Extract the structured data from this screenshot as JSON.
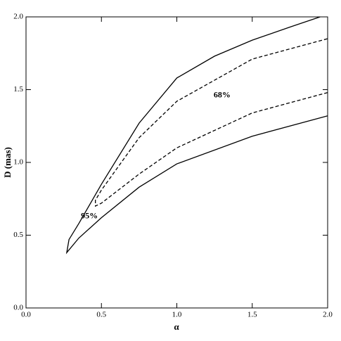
{
  "chart_data": {
    "type": "line",
    "x_label": "α",
    "y_label": "D (mas)",
    "xlim": [
      0,
      2
    ],
    "ylim": [
      0,
      2
    ],
    "xticks": [
      {
        "value": 0,
        "label": "0.0"
      },
      {
        "value": 0.5,
        "label": "0.5"
      },
      {
        "value": 1,
        "label": "1.0"
      },
      {
        "value": 1.5,
        "label": "1.5"
      },
      {
        "value": 2,
        "label": "2.0"
      }
    ],
    "yticks": [
      {
        "value": 0,
        "label": "0.0"
      },
      {
        "value": 0.5,
        "label": "0.5"
      },
      {
        "value": 1,
        "label": "1.0"
      },
      {
        "value": 1.5,
        "label": "1.5"
      },
      {
        "value": 2,
        "label": "2.0"
      }
    ],
    "series": [
      {
        "color": "#000000",
        "dashed": false,
        "x": [
          2.0,
          1.5,
          1.0,
          0.75,
          0.5,
          0.35,
          0.27,
          0.285,
          0.35,
          0.5,
          0.75,
          1.0,
          1.25,
          1.5,
          1.75,
          1.95
        ],
        "values": [
          1.32,
          1.18,
          0.99,
          0.83,
          0.62,
          0.48,
          0.38,
          0.47,
          0.58,
          0.85,
          1.27,
          1.58,
          1.73,
          1.84,
          1.93,
          2.0
        ]
      },
      {
        "color": "#000000",
        "dashed": true,
        "x": [
          2.0,
          1.5,
          1.0,
          0.75,
          0.5,
          0.46,
          0.46,
          0.5,
          0.75,
          1.0,
          1.5,
          2.0
        ],
        "values": [
          1.48,
          1.34,
          1.1,
          0.92,
          0.72,
          0.7,
          0.74,
          0.81,
          1.17,
          1.42,
          1.71,
          1.85
        ]
      }
    ],
    "annotations": [
      {
        "text": "68%",
        "x": 1.3,
        "y": 1.46
      },
      {
        "text": "95%",
        "x": 0.42,
        "y": 0.63
      }
    ]
  }
}
